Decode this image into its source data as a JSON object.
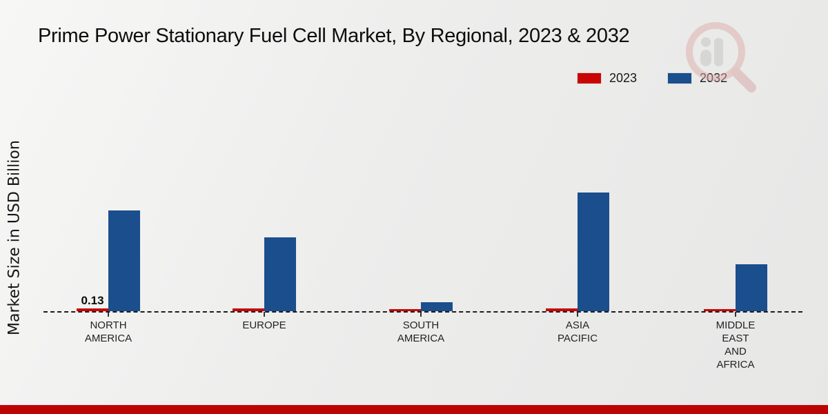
{
  "title": "Prime Power Stationary Fuel Cell Market, By Regional, 2023 & 2032",
  "y_axis_label": "Market Size in USD Billion",
  "legend": {
    "items": [
      {
        "label": "2023",
        "color": "#c90505"
      },
      {
        "label": "2032",
        "color": "#1a4e8c"
      }
    ]
  },
  "watermark": {
    "name": "market-research-future-logo"
  },
  "footer": {
    "bar_color": "#bd0404"
  },
  "chart_data": {
    "type": "bar",
    "title": "Prime Power Stationary Fuel Cell Market, By Regional, 2023 & 2032",
    "xlabel": "",
    "ylabel": "Market Size in USD Billion",
    "categories": [
      "NORTH AMERICA",
      "EUROPE",
      "SOUTH AMERICA",
      "ASIA PACIFIC",
      "MIDDLE EAST AND AFRICA"
    ],
    "series": [
      {
        "name": "2023",
        "color": "#c90505",
        "values": [
          0.13,
          0.13,
          0.11,
          0.13,
          0.11
        ]
      },
      {
        "name": "2032",
        "color": "#1a4e8c",
        "values": [
          4.75,
          3.5,
          0.41,
          5.6,
          2.21
        ]
      }
    ],
    "value_labels": [
      {
        "series": "2023",
        "category": "NORTH AMERICA",
        "text": "0.13"
      }
    ],
    "ylim": [
      0,
      6
    ],
    "grid": false,
    "legend_position": "top-right",
    "baseline_style": "dashed"
  }
}
